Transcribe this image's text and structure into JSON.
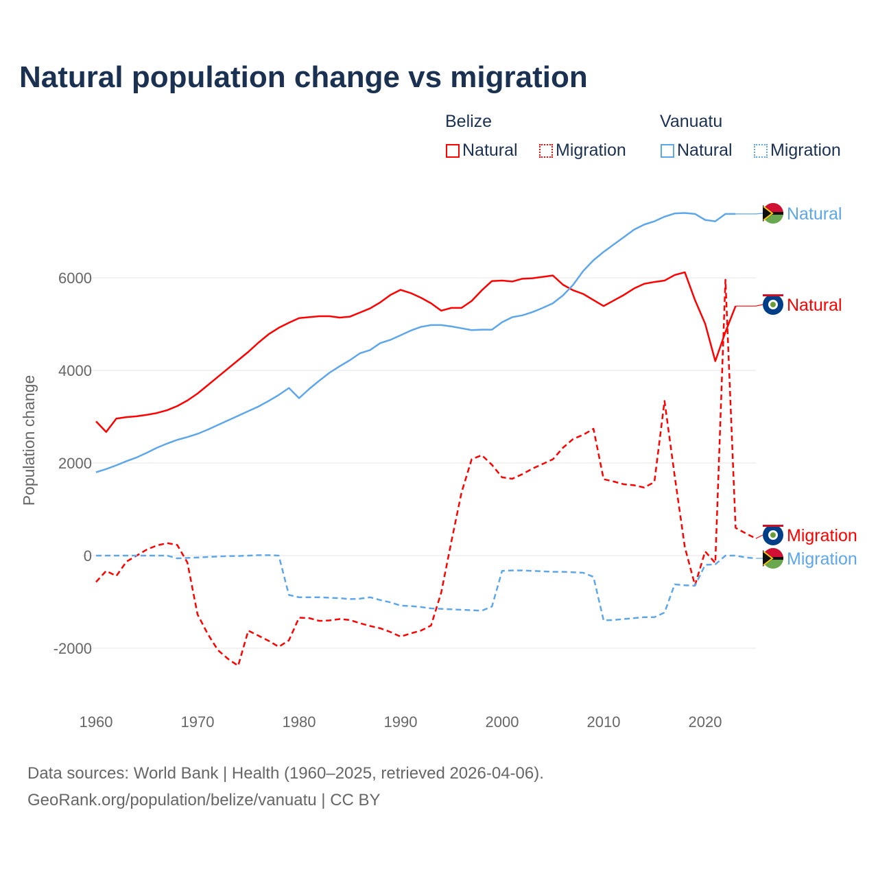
{
  "chart_data": {
    "type": "line",
    "title": "Natural population change vs migration",
    "ylabel": "Population change",
    "xlabel": "",
    "xlim": [
      1960,
      2025
    ],
    "ylim": [
      -3000,
      7600
    ],
    "xticks": [
      "1960",
      "1970",
      "1980",
      "1990",
      "2000",
      "2010",
      "2020"
    ],
    "yticks": [
      "6000",
      "4000",
      "2000",
      "0",
      "-2000"
    ],
    "grid": true,
    "legend": {
      "placement": "top-right",
      "groups": [
        {
          "name": "Belize",
          "items": [
            "Natural",
            "Migration"
          ]
        },
        {
          "name": "Vanuatu",
          "items": [
            "Natural",
            "Migration"
          ]
        }
      ]
    },
    "series": [
      {
        "name": "Belize Natural",
        "country": "Belize",
        "label": "Natural",
        "color": "#ff0000",
        "dash": false,
        "start": 1960,
        "values": [
          2900,
          2670,
          2960,
          2990,
          3010,
          3040,
          3080,
          3140,
          3230,
          3350,
          3500,
          3680,
          3860,
          4040,
          4220,
          4400,
          4600,
          4780,
          4920,
          5030,
          5130,
          5150,
          5170,
          5170,
          5140,
          5160,
          5250,
          5340,
          5470,
          5630,
          5740,
          5670,
          5570,
          5450,
          5290,
          5350,
          5350,
          5500,
          5730,
          5930,
          5940,
          5920,
          5980,
          5990,
          6020,
          6050,
          5850,
          5730,
          5650,
          5520,
          5390,
          5510,
          5630,
          5770,
          5870,
          5910,
          5940,
          6060,
          6120,
          5520,
          5010,
          4200,
          4830,
          5390
        ]
      },
      {
        "name": "Vanuatu Natural",
        "country": "Vanuatu",
        "label": "Natural",
        "color": "#5ea6ea",
        "dash": false,
        "start": 1960,
        "values": [
          1800,
          1870,
          1950,
          2040,
          2120,
          2220,
          2330,
          2420,
          2500,
          2560,
          2630,
          2720,
          2820,
          2920,
          3020,
          3120,
          3220,
          3340,
          3470,
          3620,
          3400,
          3600,
          3780,
          3950,
          4090,
          4220,
          4370,
          4440,
          4590,
          4660,
          4760,
          4860,
          4940,
          4980,
          4980,
          4950,
          4910,
          4870,
          4880,
          4880,
          5040,
          5150,
          5190,
          5260,
          5350,
          5450,
          5620,
          5850,
          6150,
          6380,
          6560,
          6720,
          6880,
          7040,
          7150,
          7220,
          7320,
          7390,
          7400,
          7380,
          7250,
          7220,
          7380,
          7380
        ]
      },
      {
        "name": "Belize Migration",
        "country": "Belize",
        "label": "Migration",
        "color": "#ff0000",
        "dash": true,
        "start": 1960,
        "values": [
          -570,
          -330,
          -440,
          -130,
          0,
          130,
          220,
          270,
          230,
          -150,
          -1270,
          -1690,
          -2040,
          -2230,
          -2380,
          -1620,
          -1730,
          -1840,
          -1970,
          -1830,
          -1340,
          -1350,
          -1410,
          -1400,
          -1370,
          -1390,
          -1460,
          -1520,
          -1570,
          -1650,
          -1750,
          -1680,
          -1620,
          -1510,
          -800,
          300,
          1360,
          2080,
          2170,
          1960,
          1690,
          1660,
          1760,
          1880,
          1980,
          2080,
          2330,
          2520,
          2610,
          2740,
          1650,
          1600,
          1540,
          1520,
          1470,
          1590,
          3340,
          1720,
          180,
          -640,
          90,
          -160,
          5960,
          600,
          480,
          370
        ]
      },
      {
        "name": "Vanuatu Migration",
        "country": "Vanuatu",
        "label": "Migration",
        "color": "#5ea6ea",
        "dash": true,
        "start": 1960,
        "values": [
          0,
          0,
          0,
          0,
          0,
          0,
          0,
          0,
          -60,
          -50,
          -40,
          -30,
          -20,
          -10,
          -10,
          0,
          10,
          10,
          0,
          -850,
          -900,
          -900,
          -900,
          -910,
          -920,
          -940,
          -930,
          -900,
          -960,
          -1010,
          -1080,
          -1090,
          -1110,
          -1140,
          -1150,
          -1160,
          -1170,
          -1180,
          -1190,
          -1100,
          -330,
          -320,
          -320,
          -330,
          -340,
          -350,
          -350,
          -360,
          -370,
          -460,
          -1400,
          -1390,
          -1370,
          -1350,
          -1330,
          -1330,
          -1230,
          -620,
          -640,
          -650,
          -200,
          -190,
          0,
          0,
          -40,
          -60
        ]
      }
    ]
  },
  "legend": {
    "belize": "Belize",
    "vanuatu": "Vanuatu",
    "natural": "Natural",
    "migration": "Migration"
  },
  "source": {
    "line1": "Data sources: World Bank | Health (1960–2025, retrieved 2026-04-06).",
    "line2": "GeoRank.org/population/belize/vanuatu | CC BY"
  }
}
